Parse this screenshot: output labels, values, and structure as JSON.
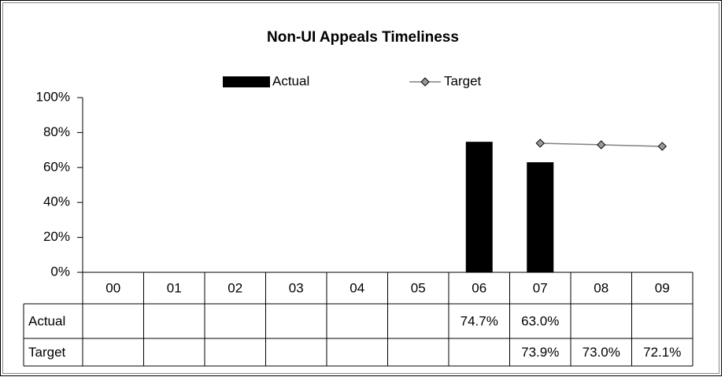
{
  "chart_data": {
    "type": "bar_line",
    "title": "Non-UI Appeals Timeliness",
    "categories": [
      "00",
      "01",
      "02",
      "03",
      "04",
      "05",
      "06",
      "07",
      "08",
      "09"
    ],
    "series": [
      {
        "name": "Actual",
        "type": "bar",
        "color": "#000000",
        "values": [
          null,
          null,
          null,
          null,
          null,
          null,
          74.7,
          63.0,
          null,
          null
        ],
        "value_labels": [
          null,
          null,
          null,
          null,
          null,
          null,
          "74.7%",
          "63.0%",
          null,
          null
        ]
      },
      {
        "name": "Target",
        "type": "line",
        "color": "#808080",
        "values": [
          null,
          null,
          null,
          null,
          null,
          null,
          null,
          73.9,
          73.0,
          72.1
        ],
        "value_labels": [
          null,
          null,
          null,
          null,
          null,
          null,
          null,
          "73.9%",
          "73.0%",
          "72.1%"
        ]
      }
    ],
    "ylim": [
      0,
      100
    ],
    "yticks": [
      {
        "value": 0,
        "label": "0%"
      },
      {
        "value": 20,
        "label": "20%"
      },
      {
        "value": 40,
        "label": "40%"
      },
      {
        "value": 60,
        "label": "60%"
      },
      {
        "value": 80,
        "label": "80%"
      },
      {
        "value": 100,
        "label": "100%"
      }
    ],
    "grid": false,
    "legend": "top",
    "data_table": true
  }
}
